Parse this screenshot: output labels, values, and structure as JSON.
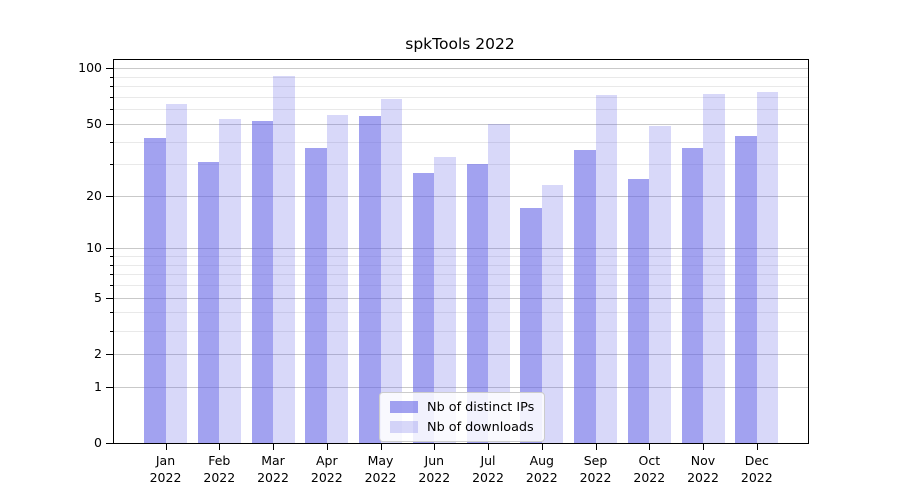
{
  "chart_data": {
    "type": "bar",
    "title": "spkTools 2022",
    "categories": [
      "Jan",
      "Feb",
      "Mar",
      "Apr",
      "May",
      "Jun",
      "Jul",
      "Aug",
      "Sep",
      "Oct",
      "Nov",
      "Dec"
    ],
    "year_label": "2022",
    "series": [
      {
        "name": "Nb of distinct IPs",
        "color": "rgba(100,100,230,0.60)",
        "values": [
          42,
          31,
          52,
          37,
          55,
          27,
          30,
          17,
          36,
          25,
          37,
          43
        ]
      },
      {
        "name": "Nb of downloads",
        "color": "rgba(100,100,230,0.25)",
        "values": [
          64,
          53,
          91,
          56,
          68,
          33,
          50,
          23,
          72,
          49,
          73,
          75
        ]
      }
    ],
    "yscale": "log1p",
    "ylim": [
      0,
      111
    ],
    "y_major_ticks": [
      0,
      1,
      2,
      5,
      10,
      20,
      50,
      100
    ],
    "y_minor_ticks": [
      3,
      4,
      6,
      7,
      8,
      9,
      30,
      40,
      60,
      70,
      80,
      90
    ],
    "grid": "both",
    "legend_position": "lower center",
    "colors": {
      "background": "#ffffff",
      "major_grid": "#c9c9c9",
      "minor_grid": "#e9e9e9",
      "axis": "#000000"
    }
  }
}
